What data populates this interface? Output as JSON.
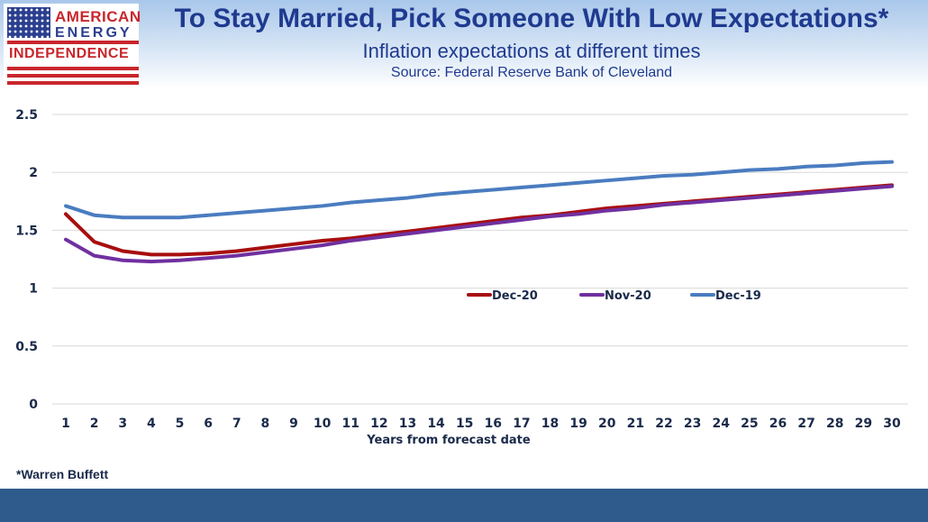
{
  "logo": {
    "line1": "AMERICAN",
    "line2": "ENERGY",
    "line3": "INDEPENDENCE"
  },
  "header": {
    "title": "To Stay Married, Pick Someone With Low Expectations*",
    "subtitle": "Inflation expectations at different times",
    "source": "Source: Federal Reserve Bank of Cleveland"
  },
  "footnote": "*Warren Buffett",
  "colors": {
    "title": "#1f3a8f",
    "footer_bar": "#2f5b8c",
    "brand_red": "#c8262c",
    "brand_blue": "#2b3f8f"
  },
  "chart_data": {
    "type": "line",
    "xlabel": "Years from forecast date",
    "ylabel": "",
    "x": [
      1,
      2,
      3,
      4,
      5,
      6,
      7,
      8,
      9,
      10,
      11,
      12,
      13,
      14,
      15,
      16,
      17,
      18,
      19,
      20,
      21,
      22,
      23,
      24,
      25,
      26,
      27,
      28,
      29,
      30
    ],
    "ylim": [
      0,
      2.5
    ],
    "yticks": [
      "0",
      "0.5",
      "1",
      "1.5",
      "2",
      "2.5"
    ],
    "ytick_values": [
      0,
      0.5,
      1,
      1.5,
      2,
      2.5
    ],
    "grid": "horizontal",
    "legend_position": "center",
    "series": [
      {
        "name": "Dec-20",
        "color": "#a80e0e",
        "values": [
          1.64,
          1.4,
          1.32,
          1.29,
          1.29,
          1.3,
          1.32,
          1.35,
          1.38,
          1.41,
          1.43,
          1.46,
          1.49,
          1.52,
          1.55,
          1.58,
          1.61,
          1.63,
          1.66,
          1.69,
          1.71,
          1.73,
          1.75,
          1.77,
          1.79,
          1.81,
          1.83,
          1.85,
          1.87,
          1.89
        ]
      },
      {
        "name": "Nov-20",
        "color": "#7030a0",
        "values": [
          1.42,
          1.28,
          1.24,
          1.23,
          1.24,
          1.26,
          1.28,
          1.31,
          1.34,
          1.37,
          1.41,
          1.44,
          1.47,
          1.5,
          1.53,
          1.56,
          1.59,
          1.62,
          1.64,
          1.67,
          1.69,
          1.72,
          1.74,
          1.76,
          1.78,
          1.8,
          1.82,
          1.84,
          1.86,
          1.88
        ]
      },
      {
        "name": "Dec-19",
        "color": "#4a7cc0",
        "values": [
          1.71,
          1.63,
          1.61,
          1.61,
          1.61,
          1.63,
          1.65,
          1.67,
          1.69,
          1.71,
          1.74,
          1.76,
          1.78,
          1.81,
          1.83,
          1.85,
          1.87,
          1.89,
          1.91,
          1.93,
          1.95,
          1.97,
          1.98,
          2.0,
          2.02,
          2.03,
          2.05,
          2.06,
          2.08,
          2.09
        ]
      }
    ]
  }
}
